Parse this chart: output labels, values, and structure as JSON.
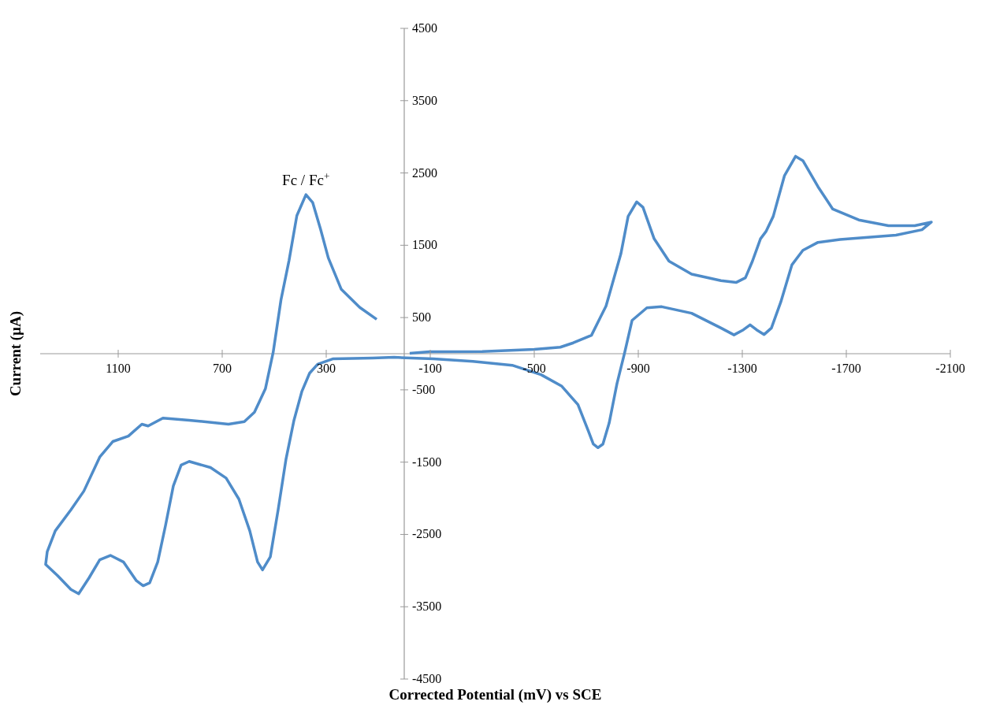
{
  "chart_data": {
    "type": "line",
    "xlabel": "Corrected Potential (mV) vs SCE",
    "ylabel": "Current (µA)",
    "annotations": [
      {
        "text": "Fc / Fc$^{+}$",
        "x": 378,
        "y": 2200
      }
    ],
    "xlim": [
      1400,
      -2100
    ],
    "xticks": [
      1100,
      700,
      300,
      -100,
      -500,
      -900,
      -1300,
      -1700,
      -2100
    ],
    "ylim": [
      -4500,
      4500
    ],
    "yticks": [
      -4500,
      -3500,
      -2500,
      -1500,
      -500,
      500,
      1500,
      2500,
      3500,
      4500
    ],
    "color": "#4f8cc9",
    "x": [
      -21,
      -97,
      -300,
      -500,
      -600,
      -650,
      -720,
      -776,
      -833,
      -861,
      -894,
      -918,
      -961,
      -1018,
      -1105,
      -1218,
      -1276,
      -1312,
      -1339,
      -1370,
      -1391,
      -1419,
      -1462,
      -1505,
      -1533,
      -1591,
      -1648,
      -1748,
      -1862,
      -1963,
      -2027,
      -1991,
      -1891,
      -1676,
      -1591,
      -1533,
      -1491,
      -1448,
      -1412,
      -1384,
      -1355,
      -1330,
      -1304,
      -1268,
      -1218,
      -1105,
      -990,
      -933,
      -876,
      -848,
      -818,
      -788,
      -764,
      -745,
      -727,
      -708,
      -668,
      -606,
      -526,
      -415,
      -264,
      -112,
      39,
      121,
      273,
      333,
      364,
      394,
      424,
      455,
      485,
      515,
      545,
      564,
      594,
      636,
      685,
      745,
      827,
      858,
      888,
      918,
      948,
      979,
      1004,
      1030,
      1080,
      1130,
      1171,
      1212,
      1252,
      1282,
      1333,
      1379,
      1373,
      1342,
      1282,
      1232,
      1171,
      1121,
      1061,
      1009,
      985,
      928,
      827,
      676,
      615,
      576,
      534,
      504,
      474,
      443,
      413,
      378,
      352,
      322,
      292,
      242,
      171,
      106
    ],
    "values": [
      5,
      27,
      30,
      60,
      90,
      150,
      255,
      660,
      1380,
      1900,
      2100,
      2025,
      1590,
      1280,
      1100,
      1010,
      985,
      1050,
      1280,
      1590,
      1690,
      1900,
      2460,
      2730,
      2670,
      2310,
      2000,
      1850,
      1770,
      1770,
      1820,
      1715,
      1640,
      1580,
      1540,
      1430,
      1230,
      715,
      355,
      265,
      330,
      400,
      330,
      260,
      355,
      560,
      650,
      635,
      460,
      20,
      -415,
      -960,
      -1250,
      -1300,
      -1250,
      -1070,
      -705,
      -450,
      -290,
      -160,
      -105,
      -70,
      -50,
      -60,
      -70,
      -145,
      -270,
      -525,
      -920,
      -1465,
      -2160,
      -2810,
      -2990,
      -2880,
      -2450,
      -2010,
      -1720,
      -1575,
      -1490,
      -1540,
      -1830,
      -2375,
      -2880,
      -3170,
      -3210,
      -3140,
      -2880,
      -2790,
      -2850,
      -3100,
      -3320,
      -3260,
      -3070,
      -2915,
      -2740,
      -2450,
      -2160,
      -1900,
      -1430,
      -1215,
      -1140,
      -975,
      -1000,
      -890,
      -920,
      -975,
      -940,
      -810,
      -485,
      20,
      745,
      1290,
      1910,
      2200,
      2090,
      1725,
      1325,
      890,
      640,
      475
    ]
  }
}
